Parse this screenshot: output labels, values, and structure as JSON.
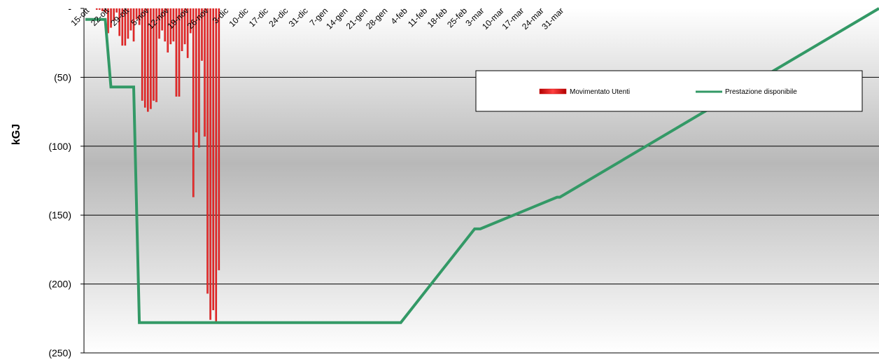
{
  "chart_data": {
    "type": "bar",
    "ylabel": "kGJ",
    "ylim": [
      -250,
      0
    ],
    "ytick_values": [
      0,
      -50,
      -100,
      -150,
      -200,
      -250
    ],
    "ytick_labels": [
      "-",
      "(50)",
      "(100)",
      "(150)",
      "(200)",
      "(250)"
    ],
    "xtick_labels": [
      "15-ott",
      "22-ott",
      "29-ott",
      "5-nov",
      "12-nov",
      "19-nov",
      "26-nov",
      "3-dic",
      "10-dic",
      "17-dic",
      "24-dic",
      "31-dic",
      "7-gen",
      "14-gen",
      "21-gen",
      "28-gen",
      "4-feb",
      "11-feb",
      "18-feb",
      "25-feb",
      "3-mar",
      "10-mar",
      "17-mar",
      "24-mar",
      "31-mar"
    ],
    "grid": true,
    "legend_position": "top-right",
    "series": [
      {
        "name": "Movimentato Utenti",
        "kind": "bar",
        "color": "#ff0000",
        "x": [
          "19-ott",
          "20-ott",
          "21-ott",
          "22-ott",
          "23-ott",
          "24-ott",
          "25-ott",
          "26-ott",
          "27-ott",
          "28-ott",
          "29-ott",
          "30-ott",
          "31-ott",
          "1-nov",
          "2-nov",
          "3-nov",
          "4-nov",
          "5-nov",
          "6-nov",
          "7-nov",
          "8-nov",
          "9-nov",
          "10-nov",
          "11-nov",
          "12-nov",
          "13-nov",
          "14-nov",
          "15-nov",
          "16-nov",
          "17-nov",
          "18-nov",
          "19-nov",
          "20-nov",
          "21-nov",
          "22-nov",
          "23-nov",
          "24-nov",
          "25-nov",
          "26-nov",
          "27-nov",
          "28-nov",
          "29-nov",
          "30-nov",
          "1-dic"
        ],
        "values": [
          -1,
          -1,
          -2,
          -3,
          -18,
          -14,
          -9,
          -3,
          -20,
          -27,
          -27,
          -22,
          -16,
          -24,
          -8,
          -12,
          -67,
          -72,
          -75,
          -73,
          -67,
          -68,
          -22,
          -16,
          -24,
          -32,
          -26,
          -24,
          -64,
          -64,
          -31,
          -26,
          -36,
          -18,
          -137,
          -90,
          -101,
          -38,
          -93,
          -207,
          -226,
          -219,
          -228,
          -190
        ]
      },
      {
        "name": "Prestazione disponibile",
        "kind": "line",
        "color": "#339966",
        "x": [
          "15-ott",
          "22-ott",
          "24-ott",
          "1-nov",
          "3-nov",
          "3-feb",
          "1-mar",
          "3-mar",
          "30-mar",
          "31-mar"
        ],
        "values": [
          -8,
          -8,
          -57,
          -57,
          -228,
          -228,
          -160,
          -160,
          -137,
          -137
        ]
      }
    ]
  }
}
